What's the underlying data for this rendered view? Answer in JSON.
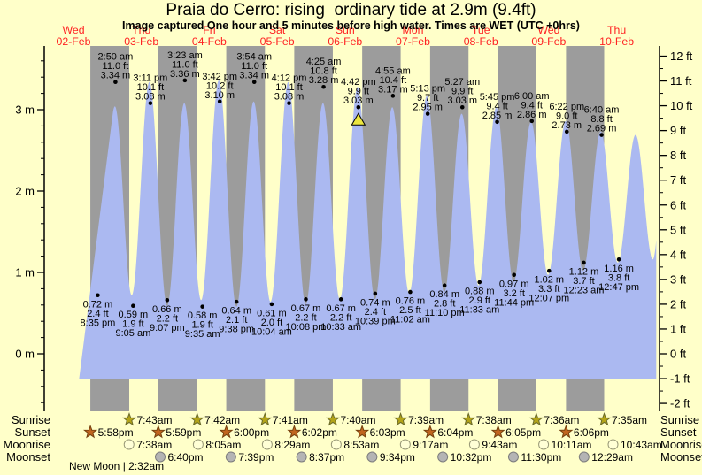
{
  "title": "Praia do Cerro: rising  ordinary tide at 2.9m (9.4ft)",
  "subtitle": "Image captured One hour and 5 minutes before high water. Times are WET (UTC +0hrs)",
  "footnote": "New Moon | 2:32am",
  "row_labels": {
    "sunrise": "Sunrise",
    "sunset": "Sunset",
    "moonrise": "Moonrise",
    "moonset": "Moonset"
  },
  "colors": {
    "background": "#ffffc9",
    "night_band": "#9c9c9c",
    "tide_fill": "#abb9f1",
    "day_label": "#ff2222",
    "axis": "#000000",
    "sunrise_star_fill": "#b3a418",
    "sunrise_star_stroke": "#6b6b2a",
    "sunset_star_fill": "#c1651f",
    "sunset_star_stroke": "#74400e",
    "moonrise_fill": "#ffffd6",
    "moonrise_stroke": "#999977",
    "moonset_fill": "#b4b4b4",
    "moonset_stroke": "#7d7d7d",
    "marker_fill": "#ece73f",
    "marker_stroke": "#000000"
  },
  "chart_data": {
    "type": "area",
    "title": "Praia do Cerro tide heights, 02-Feb to 10-Feb",
    "left_axis": {
      "unit": "m",
      "major_ticks": [
        0,
        1,
        2,
        3
      ],
      "minor_step": 0.2
    },
    "right_axis": {
      "unit": "ft",
      "tick_min": -2,
      "tick_max": 12,
      "minor_step": 0.5
    },
    "fill_base_ft": -1,
    "data_start": {
      "day": 0,
      "hour": 14.0
    },
    "data_end": {
      "day": 8,
      "hour": 14.0
    },
    "days": [
      {
        "weekday": "Wed",
        "date": "02-Feb"
      },
      {
        "weekday": "Thu",
        "date": "03-Feb"
      },
      {
        "weekday": "Fri",
        "date": "04-Feb"
      },
      {
        "weekday": "Sat",
        "date": "05-Feb"
      },
      {
        "weekday": "Sun",
        "date": "06-Feb"
      },
      {
        "weekday": "Mon",
        "date": "07-Feb"
      },
      {
        "weekday": "Tue",
        "date": "08-Feb"
      },
      {
        "weekday": "Wed",
        "date": "09-Feb"
      },
      {
        "weekday": "Thu",
        "date": "10-Feb"
      }
    ],
    "extremes": [
      {
        "day": 0,
        "hour": 8.4,
        "m": 0.65,
        "type": "low",
        "labels": null
      },
      {
        "day": 0,
        "hour": 14.65,
        "m": 3.04,
        "type": "high",
        "labels": null
      },
      {
        "day": 0,
        "hour": 20.583,
        "m": 0.72,
        "type": "low",
        "labels": [
          "0.72 m",
          "2.4 ft",
          "8:35 pm"
        ]
      },
      {
        "day": 1,
        "hour": 2.833,
        "m": 3.34,
        "type": "high",
        "labels": [
          "2:50 am",
          "11.0 ft",
          "3.34 m"
        ]
      },
      {
        "day": 1,
        "hour": 9.083,
        "m": 0.59,
        "type": "low",
        "labels": [
          "0.59 m",
          "1.9 ft",
          "9:05 am"
        ]
      },
      {
        "day": 1,
        "hour": 15.183,
        "m": 3.08,
        "type": "high",
        "labels": [
          "3:11 pm",
          "10.1 ft",
          "3.08 m"
        ]
      },
      {
        "day": 1,
        "hour": 21.117,
        "m": 0.66,
        "type": "low",
        "labels": [
          "0.66 m",
          "2.2 ft",
          "9:07 pm"
        ]
      },
      {
        "day": 2,
        "hour": 3.383,
        "m": 3.36,
        "type": "high",
        "labels": [
          "3:23 am",
          "11.0 ft",
          "3.36 m"
        ]
      },
      {
        "day": 2,
        "hour": 9.583,
        "m": 0.58,
        "type": "low",
        "labels": [
          "0.58 m",
          "1.9 ft",
          "9:35 am"
        ]
      },
      {
        "day": 2,
        "hour": 15.7,
        "m": 3.1,
        "type": "high",
        "labels": [
          "3:42 pm",
          "10.2 ft",
          "3.10 m"
        ]
      },
      {
        "day": 2,
        "hour": 21.633,
        "m": 0.64,
        "type": "low",
        "labels": [
          "0.64 m",
          "2.1 ft",
          "9:38 pm"
        ]
      },
      {
        "day": 3,
        "hour": 3.9,
        "m": 3.34,
        "type": "high",
        "labels": [
          "3:54 am",
          "11.0 ft",
          "3.34 m"
        ]
      },
      {
        "day": 3,
        "hour": 10.067,
        "m": 0.61,
        "type": "low",
        "labels": [
          "0.61 m",
          "2.0 ft",
          "10:04 am"
        ]
      },
      {
        "day": 3,
        "hour": 16.2,
        "m": 3.08,
        "type": "high",
        "labels": [
          "4:12 pm",
          "10.1 ft",
          "3.08 m"
        ]
      },
      {
        "day": 3,
        "hour": 22.133,
        "m": 0.67,
        "type": "low",
        "labels": [
          "0.67 m",
          "2.2 ft",
          "10:08 pm"
        ]
      },
      {
        "day": 4,
        "hour": 4.417,
        "m": 3.28,
        "type": "high",
        "labels": [
          "4:25 am",
          "10.8 ft",
          "3.28 m"
        ]
      },
      {
        "day": 4,
        "hour": 10.55,
        "m": 0.67,
        "type": "low",
        "labels": [
          "0.67 m",
          "2.2 ft",
          "10:33 am"
        ]
      },
      {
        "day": 4,
        "hour": 16.7,
        "m": 3.03,
        "type": "high",
        "labels": [
          "4:42 pm",
          "9.9 ft",
          "3.03 m"
        ],
        "marker": true
      },
      {
        "day": 4,
        "hour": 22.65,
        "m": 0.74,
        "type": "low",
        "labels": [
          "0.74 m",
          "2.4 ft",
          "10:39 pm"
        ]
      },
      {
        "day": 5,
        "hour": 4.917,
        "m": 3.17,
        "type": "high",
        "labels": [
          "4:55 am",
          "10.4 ft",
          "3.17 m"
        ]
      },
      {
        "day": 5,
        "hour": 11.033,
        "m": 0.76,
        "type": "low",
        "labels": [
          "0.76 m",
          "2.5 ft",
          "11:02 am"
        ]
      },
      {
        "day": 5,
        "hour": 17.217,
        "m": 2.95,
        "type": "high",
        "labels": [
          "5:13 pm",
          "9.7 ft",
          "2.95 m"
        ]
      },
      {
        "day": 5,
        "hour": 23.167,
        "m": 0.84,
        "type": "low",
        "labels": [
          "0.84 m",
          "2.8 ft",
          "11:10 pm"
        ]
      },
      {
        "day": 6,
        "hour": 5.45,
        "m": 3.03,
        "type": "high",
        "labels": [
          "5:27 am",
          "9.9 ft",
          "3.03 m"
        ]
      },
      {
        "day": 6,
        "hour": 11.55,
        "m": 0.88,
        "type": "low",
        "labels": [
          "0.88 m",
          "2.9 ft",
          "11:33 am"
        ]
      },
      {
        "day": 6,
        "hour": 17.75,
        "m": 2.85,
        "type": "high",
        "labels": [
          "5:45 pm",
          "9.4 ft",
          "2.85 m"
        ]
      },
      {
        "day": 6,
        "hour": 23.733,
        "m": 0.97,
        "type": "low",
        "labels": [
          "0.97 m",
          "3.2 ft",
          "11:44 pm"
        ]
      },
      {
        "day": 7,
        "hour": 6.0,
        "m": 2.86,
        "type": "high",
        "labels": [
          "6:00 am",
          "9.4 ft",
          "2.86 m"
        ]
      },
      {
        "day": 7,
        "hour": 12.117,
        "m": 1.02,
        "type": "low",
        "labels": [
          "1.02 m",
          "3.3 ft",
          "12:07 pm"
        ]
      },
      {
        "day": 7,
        "hour": 18.367,
        "m": 2.73,
        "type": "high",
        "labels": [
          "6:22 pm",
          "9.0 ft",
          "2.73 m"
        ]
      },
      {
        "day": 8,
        "hour": 0.383,
        "m": 1.12,
        "type": "low",
        "labels": [
          "1.12 m",
          "3.7 ft",
          "12:23 am"
        ]
      },
      {
        "day": 8,
        "hour": 6.667,
        "m": 2.69,
        "type": "high",
        "labels": [
          "6:40 am",
          "8.8 ft",
          "2.69 m"
        ]
      },
      {
        "day": 8,
        "hour": 12.783,
        "m": 1.16,
        "type": "low",
        "labels": [
          "1.16 m",
          "3.8 ft",
          "12:47 pm"
        ]
      },
      {
        "day": 8,
        "hour": 17.4,
        "m": 2.6,
        "type": "high",
        "labels": null
      }
    ]
  },
  "astro": {
    "sunrise": [
      {
        "day": 1,
        "hour": 7.717,
        "label": "7:43am"
      },
      {
        "day": 2,
        "hour": 7.7,
        "label": "7:42am"
      },
      {
        "day": 3,
        "hour": 7.683,
        "label": "7:41am"
      },
      {
        "day": 4,
        "hour": 7.667,
        "label": "7:40am"
      },
      {
        "day": 5,
        "hour": 7.65,
        "label": "7:39am"
      },
      {
        "day": 6,
        "hour": 7.633,
        "label": "7:38am"
      },
      {
        "day": 7,
        "hour": 7.6,
        "label": "7:36am"
      },
      {
        "day": 8,
        "hour": 7.583,
        "label": "7:35am"
      }
    ],
    "sunset": [
      {
        "day": 0,
        "hour": 17.967,
        "label": "5:58pm"
      },
      {
        "day": 1,
        "hour": 17.983,
        "label": "5:59pm"
      },
      {
        "day": 2,
        "hour": 18.0,
        "label": "6:00pm"
      },
      {
        "day": 3,
        "hour": 18.033,
        "label": "6:02pm"
      },
      {
        "day": 4,
        "hour": 18.05,
        "label": "6:03pm"
      },
      {
        "day": 5,
        "hour": 18.067,
        "label": "6:04pm"
      },
      {
        "day": 6,
        "hour": 18.083,
        "label": "6:05pm"
      },
      {
        "day": 7,
        "hour": 18.1,
        "label": "6:06pm"
      }
    ],
    "moonrise": [
      {
        "day": 1,
        "hour": 7.633,
        "label": "7:38am"
      },
      {
        "day": 2,
        "hour": 8.083,
        "label": "8:05am"
      },
      {
        "day": 3,
        "hour": 8.483,
        "label": "8:29am"
      },
      {
        "day": 4,
        "hour": 8.883,
        "label": "8:53am"
      },
      {
        "day": 5,
        "hour": 9.283,
        "label": "9:17am"
      },
      {
        "day": 6,
        "hour": 9.717,
        "label": "9:43am"
      },
      {
        "day": 7,
        "hour": 10.183,
        "label": "10:11am"
      },
      {
        "day": 8,
        "hour": 10.717,
        "label": "10:43am"
      }
    ],
    "moonset": [
      {
        "day": 1,
        "hour": 18.667,
        "label": "6:40pm"
      },
      {
        "day": 2,
        "hour": 19.65,
        "label": "7:39pm"
      },
      {
        "day": 3,
        "hour": 20.617,
        "label": "8:37pm"
      },
      {
        "day": 4,
        "hour": 21.567,
        "label": "9:34pm"
      },
      {
        "day": 5,
        "hour": 22.533,
        "label": "10:32pm"
      },
      {
        "day": 6,
        "hour": 23.5,
        "label": "11:30pm"
      },
      {
        "day": 8,
        "hour": 0.483,
        "label": "12:29am"
      }
    ]
  }
}
